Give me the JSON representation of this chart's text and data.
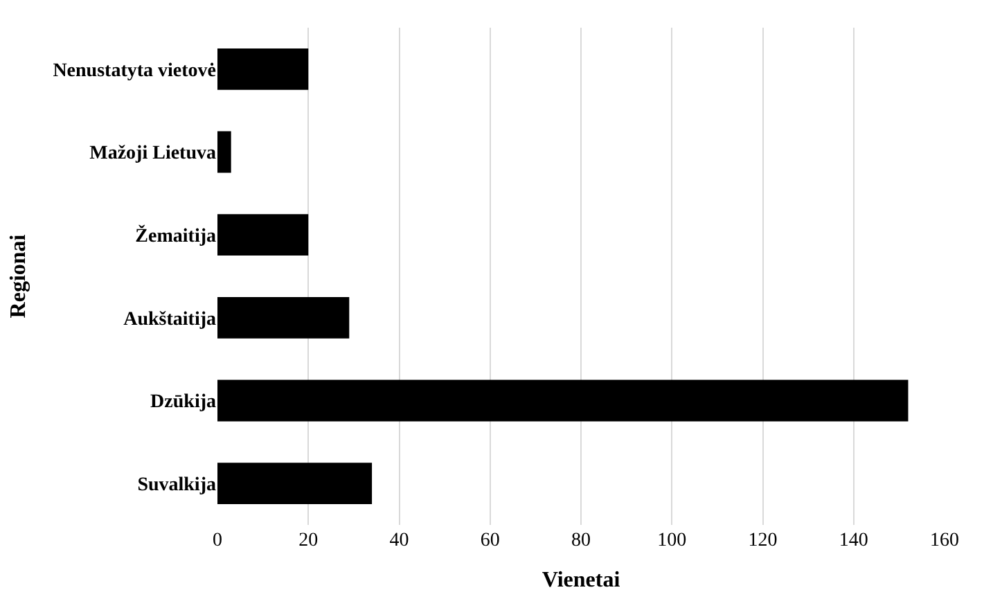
{
  "chart_data": {
    "type": "bar",
    "orientation": "horizontal",
    "categories": [
      "Nenustatyta vietovė",
      "Mažoji Lietuva",
      "Žemaitija",
      "Aukštaitija",
      "Dzūkija",
      "Suvalkija"
    ],
    "values": [
      20,
      3,
      20,
      29,
      152,
      34
    ],
    "color": "#000000",
    "xlabel": "Vienetai",
    "ylabel": "Regionai",
    "xlim": [
      0,
      160
    ],
    "xticks": [
      0,
      20,
      40,
      60,
      80,
      100,
      120,
      140,
      160
    ],
    "grid": "x",
    "legend": false
  }
}
